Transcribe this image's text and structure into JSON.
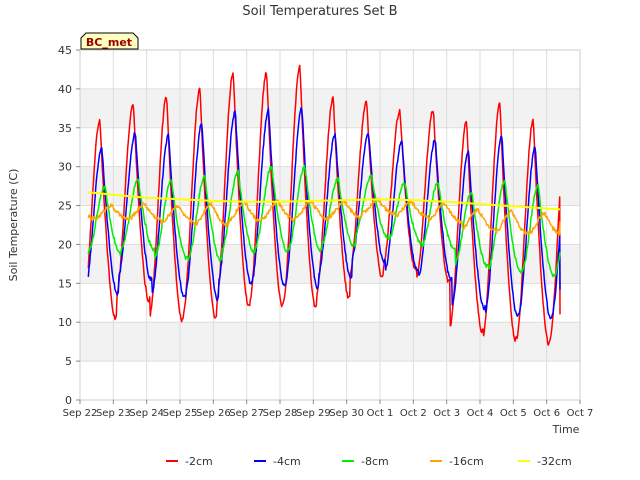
{
  "chart_data": {
    "type": "line",
    "title": "Soil Temperatures Set B",
    "xlabel": "Time",
    "ylabel": "Soil Temperature (C)",
    "site_label": "BC_met",
    "ylim": [
      0,
      45
    ],
    "yticks": [
      0,
      5,
      10,
      15,
      20,
      25,
      30,
      35,
      40,
      45
    ],
    "xlim": [
      0,
      15
    ],
    "xtick_labels": [
      "Sep 22",
      "Sep 23",
      "Sep 24",
      "Sep 25",
      "Sep 26",
      "Sep 27",
      "Sep 28",
      "Sep 29",
      "Sep 30",
      "Oct 1",
      "Oct 2",
      "Oct 3",
      "Oct 4",
      "Oct 5",
      "Oct 6",
      "Oct 7"
    ],
    "grid": true,
    "legend_position": "bottom",
    "days": [
      "Sep 23",
      "Sep 24",
      "Sep 25",
      "Sep 26",
      "Sep 27",
      "Sep 28",
      "Sep 29",
      "Sep 30",
      "Oct 1",
      "Oct 2",
      "Oct 3",
      "Oct 4",
      "Oct 5",
      "Oct 6"
    ],
    "series": [
      {
        "name": "-2cm",
        "color": "#ff0000",
        "start": 0.25,
        "end": 14.4,
        "peak_time_of_day": 0.6,
        "daily_min": [
          10.5,
          12.8,
          10.3,
          10.5,
          12.0,
          12.2,
          12.0,
          13.2,
          15.8,
          16.8,
          15.2,
          8.8,
          7.8,
          7.3
        ],
        "daily_max": [
          36.0,
          38.2,
          39.0,
          40.0,
          42.0,
          42.2,
          42.8,
          38.8,
          38.3,
          37.2,
          37.3,
          35.8,
          38.2,
          36.0
        ],
        "final_value": 11.0
      },
      {
        "name": "-4cm",
        "color": "#0000ff",
        "start": 0.25,
        "end": 14.4,
        "peak_time_of_day": 0.66,
        "daily_min": [
          13.6,
          15.5,
          13.3,
          13.0,
          15.0,
          14.8,
          14.5,
          15.8,
          17.8,
          16.5,
          15.5,
          11.8,
          10.8,
          10.5
        ],
        "daily_max": [
          32.5,
          34.3,
          34.0,
          35.5,
          37.0,
          37.3,
          37.5,
          34.2,
          34.2,
          33.3,
          33.5,
          32.0,
          34.0,
          32.5
        ],
        "final_value": 14.2
      },
      {
        "name": "-8cm",
        "color": "#00ee00",
        "start": 0.25,
        "end": 14.4,
        "peak_time_of_day": 0.75,
        "daily_min": [
          18.8,
          19.3,
          18.2,
          18.0,
          19.0,
          19.2,
          19.2,
          19.8,
          21.0,
          20.2,
          19.5,
          17.2,
          16.5,
          16.0
        ],
        "daily_max": [
          27.5,
          28.3,
          28.2,
          28.7,
          29.3,
          30.0,
          30.0,
          28.5,
          28.8,
          28.0,
          28.0,
          26.8,
          28.3,
          27.5
        ],
        "final_value": 19.0
      },
      {
        "name": "-16cm",
        "color": "#ffa500",
        "start": 0.25,
        "end": 14.4,
        "peak_time_of_day": 0.95,
        "daily_min": [
          23.3,
          23.2,
          22.8,
          22.5,
          23.0,
          23.2,
          23.3,
          23.5,
          24.0,
          23.6,
          23.0,
          22.0,
          21.5,
          21.3
        ],
        "daily_max": [
          25.0,
          25.2,
          25.0,
          25.3,
          25.5,
          25.5,
          25.6,
          25.5,
          25.7,
          25.5,
          25.3,
          24.5,
          24.3,
          24.0
        ],
        "final_value": 23.0
      },
      {
        "name": "-32cm",
        "color": "#ffff00",
        "start": 0.25,
        "end": 14.4,
        "points": [
          [
            0.25,
            26.7
          ],
          [
            1.0,
            26.4
          ],
          [
            2.0,
            26.0
          ],
          [
            3.0,
            25.8
          ],
          [
            4.0,
            25.6
          ],
          [
            5.0,
            25.5
          ],
          [
            6.0,
            25.5
          ],
          [
            7.0,
            25.6
          ],
          [
            8.0,
            25.7
          ],
          [
            9.0,
            25.8
          ],
          [
            10.0,
            25.7
          ],
          [
            11.0,
            25.5
          ],
          [
            12.0,
            25.2
          ],
          [
            13.0,
            24.9
          ],
          [
            14.4,
            24.5
          ]
        ]
      }
    ]
  }
}
